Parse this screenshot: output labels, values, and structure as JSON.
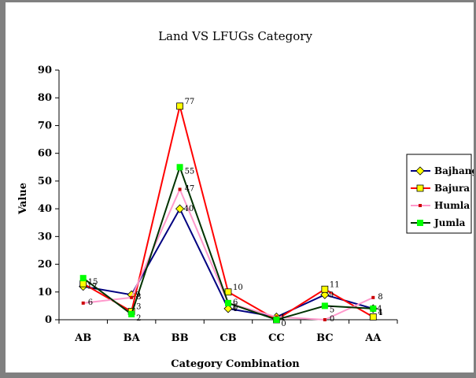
{
  "chart_data": {
    "type": "line",
    "title": "Land VS LFUGs Category",
    "xlabel": "Category Combination",
    "ylabel": "Value",
    "categories": [
      "AB",
      "BA",
      "BB",
      "CB",
      "CC",
      "BC",
      "AA"
    ],
    "ylim": [
      0,
      90
    ],
    "yticks": [
      0,
      10,
      20,
      30,
      40,
      50,
      60,
      70,
      80,
      90
    ],
    "grid": false,
    "legend_position": "right",
    "series": [
      {
        "name": "Bajhang",
        "values": [
          12,
          9,
          40,
          4,
          1,
          9,
          4
        ],
        "color": "#000080",
        "marker": "diamond",
        "marker_color": "#ffff00"
      },
      {
        "name": "Bajura",
        "values": [
          13,
          3,
          77,
          10,
          0,
          11,
          1
        ],
        "color": "#ff0000",
        "marker": "square",
        "marker_color": "#ffff00"
      },
      {
        "name": "Humla",
        "values": [
          6,
          8,
          47,
          6,
          1,
          0,
          8
        ],
        "color": "#ff99cc",
        "marker": "small-square",
        "marker_color": "#cc0000"
      },
      {
        "name": "Jumla",
        "values": [
          15,
          2,
          55,
          6,
          0,
          5,
          4
        ],
        "color": "#003300",
        "marker": "square",
        "marker_color": "#00ff00"
      }
    ],
    "data_labels": [
      {
        "series": "Bajhang",
        "labels": [
          "12",
          "9",
          "40",
          "4",
          "1",
          "9",
          "4"
        ]
      },
      {
        "series": "Bajura",
        "labels": [
          "",
          "3",
          "77",
          "10",
          "",
          "11",
          "1"
        ]
      },
      {
        "series": "Humla",
        "labels": [
          "6",
          "8",
          "47",
          "6",
          "",
          "0",
          "8"
        ]
      },
      {
        "series": "Jumla",
        "labels": [
          "15",
          "2",
          "55",
          "6",
          "0",
          "5",
          "4"
        ]
      }
    ]
  }
}
